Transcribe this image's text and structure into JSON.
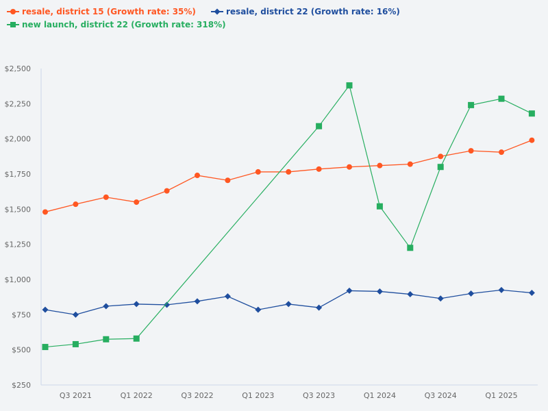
{
  "chart_data": {
    "type": "line",
    "title": "",
    "xlabel": "",
    "ylabel": "",
    "ylim": [
      250,
      2500
    ],
    "y_ticks": [
      "$250",
      "$500",
      "$750",
      "$1,000",
      "$1,250",
      "$1,500",
      "$1,750",
      "$2,000",
      "$2,250",
      "$2,500"
    ],
    "y_tick_values": [
      250,
      500,
      750,
      1000,
      1250,
      1500,
      1750,
      2000,
      2250,
      2500
    ],
    "categories": [
      "Q2 2021",
      "Q3 2021",
      "Q4 2021",
      "Q1 2022",
      "Q2 2022",
      "Q3 2022",
      "Q4 2022",
      "Q1 2023",
      "Q2 2023",
      "Q3 2023",
      "Q4 2023",
      "Q1 2024",
      "Q2 2024",
      "Q3 2024",
      "Q4 2024",
      "Q1 2025",
      "Q2 2025"
    ],
    "x_tick_labels": [
      {
        "label": "Q3 2021",
        "category": "Q3 2021"
      },
      {
        "label": "Q1 2022",
        "category": "Q1 2022"
      },
      {
        "label": "Q3 2022",
        "category": "Q3 2022"
      },
      {
        "label": "Q1 2023",
        "category": "Q1 2023"
      },
      {
        "label": "Q3 2023",
        "category": "Q3 2023"
      },
      {
        "label": "Q1 2024",
        "category": "Q1 2024"
      },
      {
        "label": "Q3 2024",
        "category": "Q3 2024"
      },
      {
        "label": "Q1 2025",
        "category": "Q1 2025"
      }
    ],
    "grid": false,
    "legend_position": "top-left",
    "series": [
      {
        "name": "resale, district 15 (Growth rate: 35%)",
        "color": "#ff5722",
        "marker": "circle",
        "values": [
          1480,
          1535,
          1585,
          1550,
          1630,
          1740,
          1705,
          1765,
          1765,
          1785,
          1800,
          1810,
          1820,
          1875,
          1915,
          1905,
          1990
        ]
      },
      {
        "name": "resale, district 22 (Growth rate: 16%)",
        "color": "#1f4e9e",
        "marker": "diamond",
        "values": [
          785,
          750,
          810,
          825,
          820,
          845,
          880,
          785,
          825,
          800,
          920,
          915,
          895,
          865,
          900,
          925,
          905
        ]
      },
      {
        "name": "new launch, district 22 (Growth rate: 318%)",
        "color": "#27ae60",
        "marker": "square",
        "values": [
          520,
          540,
          575,
          580,
          null,
          null,
          null,
          null,
          null,
          2090,
          2380,
          1520,
          1225,
          1800,
          2240,
          2285,
          2180
        ]
      }
    ]
  }
}
